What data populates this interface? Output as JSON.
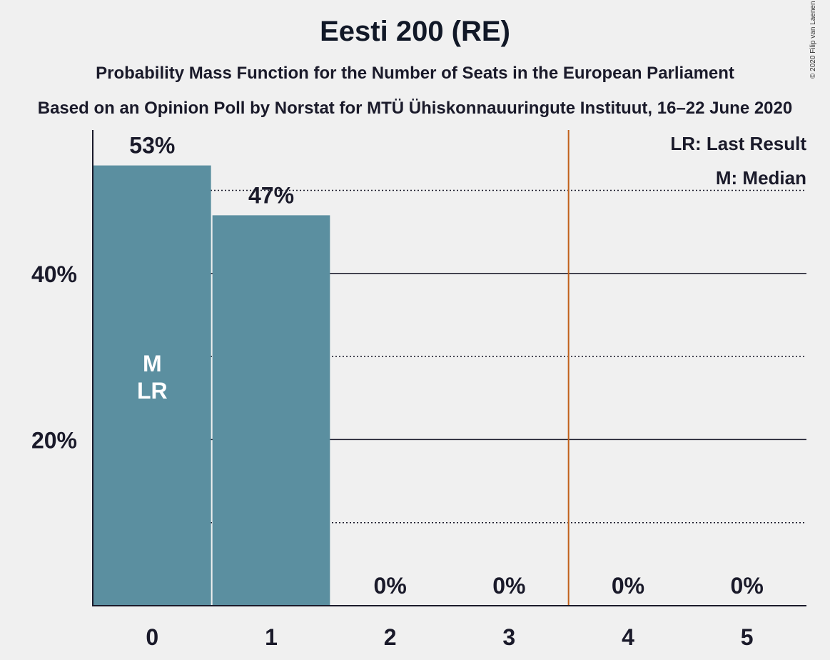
{
  "title": "Eesti 200 (RE)",
  "subtitle": "Probability Mass Function for the Number of Seats in the European Parliament",
  "source": "Based on an Opinion Poll by Norstat for MTÜ Ühiskonnauuringute Instituut, 16–22 June 2020",
  "copyright": "© 2020 Filip van Laenen",
  "legend": {
    "last_result": "LR: Last Result",
    "median": "M: Median"
  },
  "colors": {
    "bar": "#5b8fa0",
    "threshold_line": "#c0601a",
    "background": "#f0f0f0"
  },
  "chart_data": {
    "type": "bar",
    "categories": [
      "0",
      "1",
      "2",
      "3",
      "4",
      "5"
    ],
    "values": [
      53,
      47,
      0,
      0,
      0,
      0
    ],
    "value_labels": [
      "53%",
      "47%",
      "0%",
      "0%",
      "0%",
      "0%"
    ],
    "yticks": [
      20,
      40
    ],
    "ytick_labels": [
      "20%",
      "40%"
    ],
    "dotted_gridlines": [
      10,
      30,
      50
    ],
    "ylim": [
      0,
      57
    ],
    "threshold_between": [
      3,
      4
    ],
    "bar_annotation": {
      "category": "0",
      "lines": [
        "M",
        "LR"
      ]
    },
    "legend_position": "top-right"
  }
}
